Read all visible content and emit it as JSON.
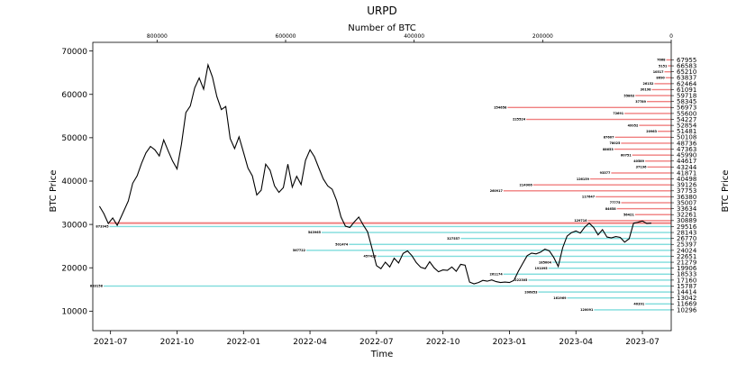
{
  "chart_data": {
    "type": "bar+line",
    "title": "URPD",
    "top_xlabel": "Number of BTC",
    "xlabel": "Time",
    "ylabel": "BTC Price",
    "ylabel_right": "BTC Price",
    "ylim": [
      5500,
      72000
    ],
    "top_x_ticks": [
      "800000",
      "600000",
      "400000",
      "200000",
      "0"
    ],
    "top_x_tick_values": [
      800000,
      600000,
      400000,
      200000,
      0
    ],
    "top_xlim": [
      900000,
      0
    ],
    "y_ticks": [
      "10000",
      "20000",
      "30000",
      "40000",
      "50000",
      "60000",
      "70000"
    ],
    "x_ticks": [
      "2021-07",
      "2021-10",
      "2022-01",
      "2022-04",
      "2022-07",
      "2022-10",
      "2023-01",
      "2023-04",
      "2023-07"
    ],
    "x_tick_months": [
      0,
      3,
      6,
      9,
      12,
      15,
      18,
      21,
      24
    ],
    "xlim_months": [
      -0.8,
      25.3
    ],
    "current_price": 30300,
    "colors": {
      "above": "#f08080",
      "below": "#7fdcdc",
      "price_line": "#000000"
    },
    "bins": [
      {
        "price": 67955,
        "btc": 7668
      },
      {
        "price": 66583,
        "btc": 5151
      },
      {
        "price": 65210,
        "btc": 10517
      },
      {
        "price": 63837,
        "btc": 8690
      },
      {
        "price": 62464,
        "btc": 26152
      },
      {
        "price": 61091,
        "btc": 30198
      },
      {
        "price": 59718,
        "btc": 55863
      },
      {
        "price": 58345,
        "btc": 37789
      },
      {
        "price": 56973,
        "btc": 254658
      },
      {
        "price": 55600,
        "btc": 72691
      },
      {
        "price": 54227,
        "btc": 225524
      },
      {
        "price": 52854,
        "btc": 49952
      },
      {
        "price": 51481,
        "btc": 20963
      },
      {
        "price": 50108,
        "btc": 87607
      },
      {
        "price": 48736,
        "btc": 78025
      },
      {
        "price": 47363,
        "btc": 88653
      },
      {
        "price": 45990,
        "btc": 60751
      },
      {
        "price": 44617,
        "btc": 40589
      },
      {
        "price": 43244,
        "btc": 37196
      },
      {
        "price": 41871,
        "btc": 93377
      },
      {
        "price": 40498,
        "btc": 126159
      },
      {
        "price": 39126,
        "btc": 214906
      },
      {
        "price": 37753,
        "btc": 260917
      },
      {
        "price": 36380,
        "btc": 117647
      },
      {
        "price": 35007,
        "btc": 77775
      },
      {
        "price": 33634,
        "btc": 84658
      },
      {
        "price": 32261,
        "btc": 56421
      },
      {
        "price": 30889,
        "btc": 129716
      },
      {
        "price": 29516,
        "btc": 873945
      },
      {
        "price": 28143,
        "btc": 543965
      },
      {
        "price": 26770,
        "btc": 327557
      },
      {
        "price": 25397,
        "btc": 501474
      },
      {
        "price": 24024,
        "btc": 567722
      },
      {
        "price": 22651,
        "btc": 457423
      },
      {
        "price": 21279,
        "btc": 185004
      },
      {
        "price": 19906,
        "btc": 191095
      },
      {
        "price": 18533,
        "btc": 261174
      },
      {
        "price": 17160,
        "btc": 222305
      },
      {
        "price": 15787,
        "btc": 883158
      },
      {
        "price": 14414,
        "btc": 206853
      },
      {
        "price": 13042,
        "btc": 161969
      },
      {
        "price": 11669,
        "btc": 40391
      },
      {
        "price": 10296,
        "btc": 120091
      }
    ],
    "price_series": [
      [
        -0.5,
        34200
      ],
      [
        -0.3,
        32500
      ],
      [
        -0.1,
        30200
      ],
      [
        0.1,
        31500
      ],
      [
        0.3,
        29800
      ],
      [
        0.5,
        32000
      ],
      [
        0.8,
        35400
      ],
      [
        1.0,
        39500
      ],
      [
        1.2,
        41200
      ],
      [
        1.4,
        44100
      ],
      [
        1.6,
        46500
      ],
      [
        1.8,
        48000
      ],
      [
        2.0,
        47200
      ],
      [
        2.2,
        45800
      ],
      [
        2.4,
        49500
      ],
      [
        2.6,
        47000
      ],
      [
        2.8,
        44600
      ],
      [
        3.0,
        42800
      ],
      [
        3.2,
        48500
      ],
      [
        3.4,
        55800
      ],
      [
        3.6,
        57300
      ],
      [
        3.8,
        61500
      ],
      [
        4.0,
        63800
      ],
      [
        4.2,
        61200
      ],
      [
        4.4,
        66800
      ],
      [
        4.6,
        64000
      ],
      [
        4.8,
        59500
      ],
      [
        5.0,
        56500
      ],
      [
        5.2,
        57200
      ],
      [
        5.4,
        49800
      ],
      [
        5.6,
        47500
      ],
      [
        5.8,
        50200
      ],
      [
        6.0,
        46600
      ],
      [
        6.2,
        43000
      ],
      [
        6.4,
        41200
      ],
      [
        6.6,
        36800
      ],
      [
        6.8,
        37900
      ],
      [
        7.0,
        43900
      ],
      [
        7.2,
        42500
      ],
      [
        7.4,
        38900
      ],
      [
        7.6,
        37400
      ],
      [
        7.8,
        38500
      ],
      [
        8.0,
        43900
      ],
      [
        8.2,
        38600
      ],
      [
        8.4,
        41100
      ],
      [
        8.6,
        39200
      ],
      [
        8.8,
        44800
      ],
      [
        9.0,
        47200
      ],
      [
        9.2,
        45600
      ],
      [
        9.4,
        43000
      ],
      [
        9.6,
        40500
      ],
      [
        9.8,
        38900
      ],
      [
        10.0,
        38100
      ],
      [
        10.2,
        35500
      ],
      [
        10.4,
        31700
      ],
      [
        10.6,
        29600
      ],
      [
        10.8,
        29300
      ],
      [
        11.0,
        30600
      ],
      [
        11.2,
        31700
      ],
      [
        11.4,
        29900
      ],
      [
        11.6,
        28300
      ],
      [
        11.8,
        24500
      ],
      [
        12.0,
        20500
      ],
      [
        12.2,
        19800
      ],
      [
        12.4,
        21300
      ],
      [
        12.6,
        20200
      ],
      [
        12.8,
        22200
      ],
      [
        13.0,
        21100
      ],
      [
        13.2,
        23300
      ],
      [
        13.4,
        23900
      ],
      [
        13.6,
        22800
      ],
      [
        13.8,
        21200
      ],
      [
        14.0,
        20100
      ],
      [
        14.2,
        19800
      ],
      [
        14.4,
        21400
      ],
      [
        14.6,
        20000
      ],
      [
        14.8,
        19100
      ],
      [
        15.0,
        19500
      ],
      [
        15.2,
        19400
      ],
      [
        15.4,
        20200
      ],
      [
        15.6,
        19200
      ],
      [
        15.8,
        20800
      ],
      [
        16.0,
        20600
      ],
      [
        16.2,
        16700
      ],
      [
        16.4,
        16300
      ],
      [
        16.6,
        16600
      ],
      [
        16.8,
        17100
      ],
      [
        17.0,
        16900
      ],
      [
        17.2,
        17200
      ],
      [
        17.4,
        16800
      ],
      [
        17.6,
        16600
      ],
      [
        17.8,
        16700
      ],
      [
        18.0,
        16600
      ],
      [
        18.2,
        17100
      ],
      [
        18.4,
        19200
      ],
      [
        18.6,
        21000
      ],
      [
        18.8,
        22800
      ],
      [
        19.0,
        23400
      ],
      [
        19.2,
        23200
      ],
      [
        19.4,
        23600
      ],
      [
        19.6,
        24300
      ],
      [
        19.8,
        23900
      ],
      [
        20.0,
        22400
      ],
      [
        20.2,
        20300
      ],
      [
        20.4,
        24600
      ],
      [
        20.6,
        27300
      ],
      [
        20.8,
        28100
      ],
      [
        21.0,
        28500
      ],
      [
        21.2,
        28000
      ],
      [
        21.4,
        29400
      ],
      [
        21.6,
        30300
      ],
      [
        21.8,
        29300
      ],
      [
        22.0,
        27600
      ],
      [
        22.2,
        28800
      ],
      [
        22.4,
        27100
      ],
      [
        22.6,
        26900
      ],
      [
        22.8,
        27200
      ],
      [
        23.0,
        27000
      ],
      [
        23.2,
        25900
      ],
      [
        23.4,
        26700
      ],
      [
        23.6,
        30300
      ],
      [
        23.8,
        30500
      ],
      [
        24.0,
        30800
      ],
      [
        24.2,
        30200
      ],
      [
        24.4,
        30300
      ]
    ]
  }
}
